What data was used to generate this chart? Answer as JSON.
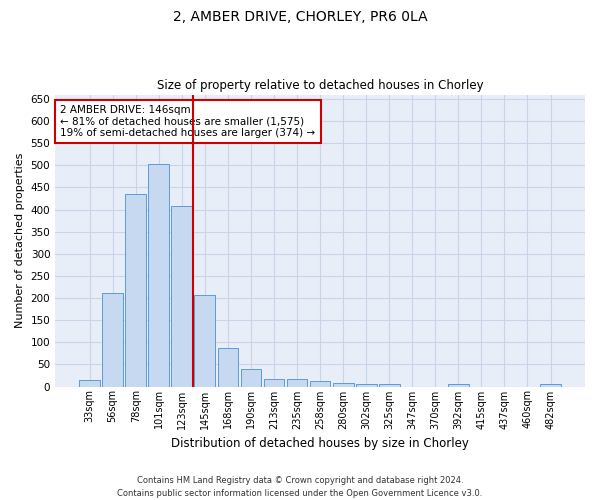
{
  "title": "2, AMBER DRIVE, CHORLEY, PR6 0LA",
  "subtitle": "Size of property relative to detached houses in Chorley",
  "xlabel": "Distribution of detached houses by size in Chorley",
  "ylabel": "Number of detached properties",
  "categories": [
    "33sqm",
    "56sqm",
    "78sqm",
    "101sqm",
    "123sqm",
    "145sqm",
    "168sqm",
    "190sqm",
    "213sqm",
    "235sqm",
    "258sqm",
    "280sqm",
    "302sqm",
    "325sqm",
    "347sqm",
    "370sqm",
    "392sqm",
    "415sqm",
    "437sqm",
    "460sqm",
    "482sqm"
  ],
  "values": [
    15,
    212,
    435,
    503,
    408,
    207,
    86,
    40,
    18,
    18,
    12,
    7,
    5,
    5,
    0,
    0,
    5,
    0,
    0,
    0,
    5
  ],
  "bar_color": "#c6d9f0",
  "bar_edge_color": "#5b9bd5",
  "grid_color": "#c8d4e8",
  "background_color": "#e8eef8",
  "vline_color": "#cc0000",
  "vline_x_index": 5,
  "annotation_text": "2 AMBER DRIVE: 146sqm\n← 81% of detached houses are smaller (1,575)\n19% of semi-detached houses are larger (374) →",
  "annotation_box_color": "#ffffff",
  "annotation_box_edge": "#cc0000",
  "footer1": "Contains HM Land Registry data © Crown copyright and database right 2024.",
  "footer2": "Contains public sector information licensed under the Open Government Licence v3.0.",
  "ylim": [
    0,
    660
  ],
  "yticks": [
    0,
    50,
    100,
    150,
    200,
    250,
    300,
    350,
    400,
    450,
    500,
    550,
    600,
    650
  ]
}
